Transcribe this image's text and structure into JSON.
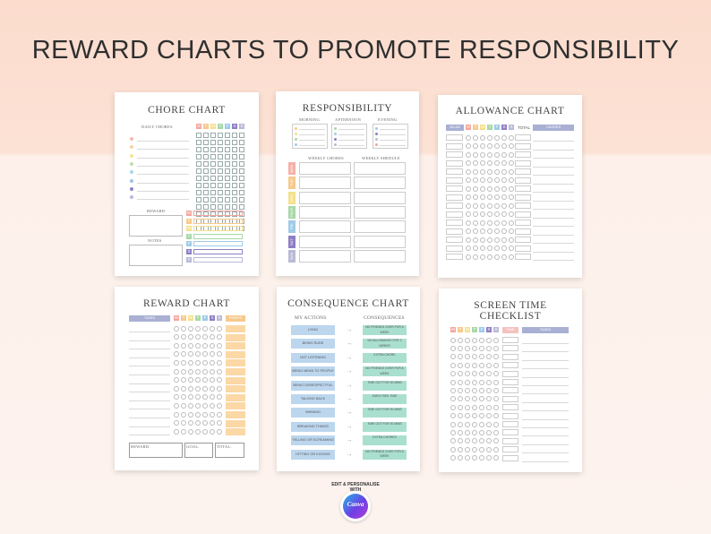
{
  "page": {
    "title": "REWARD CHARTS TO PROMOTE RESPONSIBILITY"
  },
  "letters": {
    "days": [
      "M",
      "T",
      "W",
      "T",
      "F",
      "S",
      "S"
    ],
    "colors": [
      "#f4a6a0",
      "#f7c98d",
      "#f5e08a",
      "#a8d8a8",
      "#9fcbe8",
      "#8e7fc4",
      "#b9b9d6"
    ]
  },
  "chore": {
    "title": "CHORE CHART",
    "daily": "DAILY CHORES",
    "reward": "REWARD",
    "notes": "NOTES",
    "dot_colors": [
      "#f7b9b2",
      "#f7d2a4",
      "#f6e39a",
      "#bfe0b0",
      "#a9d6e8",
      "#9ec3e8",
      "#8e7fc4",
      "#c0b6dc"
    ]
  },
  "resp": {
    "title": "RESPONSIBILITY",
    "morning": "MORNING",
    "afternoon": "AFTERNOON",
    "evening": "EVENING",
    "weekly_chores": "WEEKLY CHORES",
    "weekly_schedule": "WEEKLY SHEDULE",
    "days": [
      "MON",
      "TUE",
      "WED",
      "THUR",
      "FRI",
      "SAT",
      "SUN"
    ],
    "day_colors": [
      "#f5b0a6",
      "#f7c98d",
      "#f5e08a",
      "#a8d8a8",
      "#9fcbe8",
      "#8e7fc4",
      "#b9b9d6"
    ]
  },
  "allow": {
    "title": "ALLOWANCE CHART",
    "value": "VALUE",
    "total": "TOTAL",
    "chores": "CHORES"
  },
  "reward": {
    "title": "REWARD CHART",
    "tasks": "TASKS",
    "points": "POINTS",
    "reward": "REWARD:",
    "goal": "GOAL:",
    "total": "TOTAL:"
  },
  "conseq": {
    "title": "CONSEQUENCE CHART",
    "actions_label": "MY ACTIONS",
    "consequences_label": "CONSEQUENCES",
    "actions": [
      "LYING",
      "BEING RUDE",
      "NOT LISTENING",
      "BEING MEAN TO PEOPLE",
      "BEING DISRESPECTFUL",
      "TALKING BACK",
      "WHINING",
      "BREAKING THINGS",
      "YELLING OR SCREAMING",
      "HITTING OR KICKING"
    ],
    "consequences": [
      "NO FRIENDS OVER FOR A WEEK",
      "NO ALLOWANCE FOR 2 WEEKS",
      "EXTRA CHORE",
      "NO FRIENDS OVER FOR A WEEK",
      "TIME OUT FOR 30 MINS",
      "EARLY BED TIME",
      "TIME OUT FOR 30 MINS",
      "TIME OUT FOR 30 MINS",
      "EXTRA CHORES",
      "NO FRIENDS OVER FOR A WEEK"
    ]
  },
  "screen": {
    "title_line1": "SCREEN TIME",
    "title_line2": "CHECKLIST",
    "time": "TIME",
    "tasks": "TASKS"
  },
  "badge": {
    "top": "EDIT & PERSONALISE WITH",
    "brand": "Canva"
  }
}
